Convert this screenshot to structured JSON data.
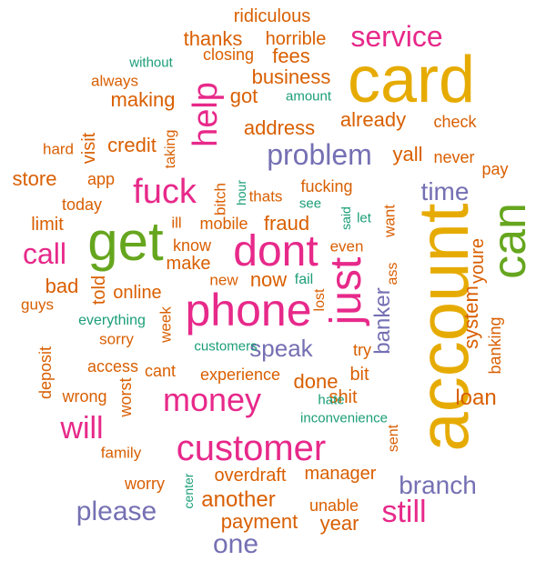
{
  "palette": {
    "orange": "#D95F02",
    "gold": "#E6AB02",
    "magenta": "#E7298A",
    "purple": "#7570B3",
    "teal": "#1B9E77",
    "green": "#66A61E"
  },
  "words": {
    "account": "account",
    "card": "card",
    "get": "get",
    "dont": "dont",
    "can": "can",
    "phone": "phone",
    "just": "just",
    "customer": "customer",
    "money": "money",
    "fuck": "fuck",
    "help": "help",
    "service": "service",
    "problem": "problem",
    "will": "will",
    "call": "call",
    "still": "still",
    "time": "time",
    "speak": "speak",
    "branch": "branch",
    "please": "please",
    "one": "one",
    "banker": "banker",
    "another": "another",
    "loan": "loan",
    "system": "system",
    "youre": "youre",
    "ridiculous": "ridiculous",
    "thanks": "thanks",
    "horrible": "horrible",
    "closing": "closing",
    "fees": "fees",
    "without": "without",
    "always": "always",
    "business": "business",
    "making": "making",
    "got": "got",
    "amount": "amount",
    "already": "already",
    "check": "check",
    "address": "address",
    "hard": "hard",
    "visit": "visit",
    "credit": "credit",
    "taking": "taking",
    "yall": "yall",
    "never": "never",
    "pay": "pay",
    "store": "store",
    "app": "app",
    "fucking": "fucking",
    "today": "today",
    "bitch": "bitch",
    "hour": "hour",
    "thats": "thats",
    "see": "see",
    "said": "said",
    "let": "let",
    "want": "want",
    "limit": "limit",
    "ill": "ill",
    "mobile": "mobile",
    "fraud": "fraud",
    "even": "even",
    "know": "know",
    "make": "make",
    "ass": "ass",
    "bad": "bad",
    "told": "told",
    "new": "new",
    "now": "now",
    "fail": "fail",
    "lost": "lost",
    "guys": "guys",
    "online": "online",
    "everything": "everything",
    "week": "week",
    "sorry": "sorry",
    "customers": "customers",
    "try": "try",
    "banking": "banking",
    "deposit": "deposit",
    "access": "access",
    "cant": "cant",
    "experience": "experience",
    "done": "done",
    "bit": "bit",
    "wrong": "wrong",
    "worst": "worst",
    "shit": "shit",
    "hate": "hate",
    "inconvenience": "inconvenience",
    "family": "family",
    "sent": "sent",
    "worry": "worry",
    "center": "center",
    "overdraft": "overdraft",
    "manager": "manager",
    "unable": "unable",
    "payment": "payment",
    "year": "year"
  }
}
